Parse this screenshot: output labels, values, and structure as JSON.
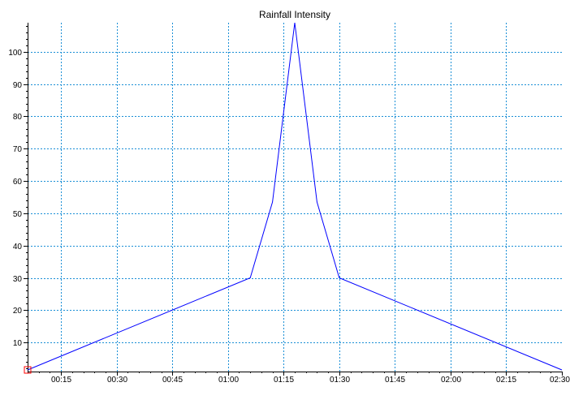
{
  "chart_data": {
    "type": "line",
    "title": "Rainfall Intensity",
    "xlabel": "",
    "ylabel": "",
    "x_tick_labels": [
      "00:15",
      "00:30",
      "00:45",
      "01:00",
      "01:15",
      "01:30",
      "01:45",
      "02:00",
      "02:15",
      "02:30"
    ],
    "y_tick_labels": [
      "10",
      "20",
      "30",
      "40",
      "50",
      "60",
      "70",
      "80",
      "90",
      "100"
    ],
    "xlim": [
      "00:06",
      "02:30"
    ],
    "ylim": [
      1,
      109
    ],
    "grid": true,
    "series": [
      {
        "color": "#0000ff",
        "x": [
          "00:06",
          "01:06",
          "01:12",
          "01:18",
          "01:24",
          "01:30",
          "02:30"
        ],
        "values": [
          1.5,
          30,
          53.5,
          109,
          53.5,
          30,
          1.5
        ]
      }
    ],
    "marker": {
      "shape": "square",
      "color": "#ff0000",
      "x": "00:06",
      "value": 1.5
    },
    "colors": {
      "grid": "#1a8fd6",
      "axis": "#000000",
      "line": "#0000ff",
      "marker": "#ff0000"
    }
  }
}
